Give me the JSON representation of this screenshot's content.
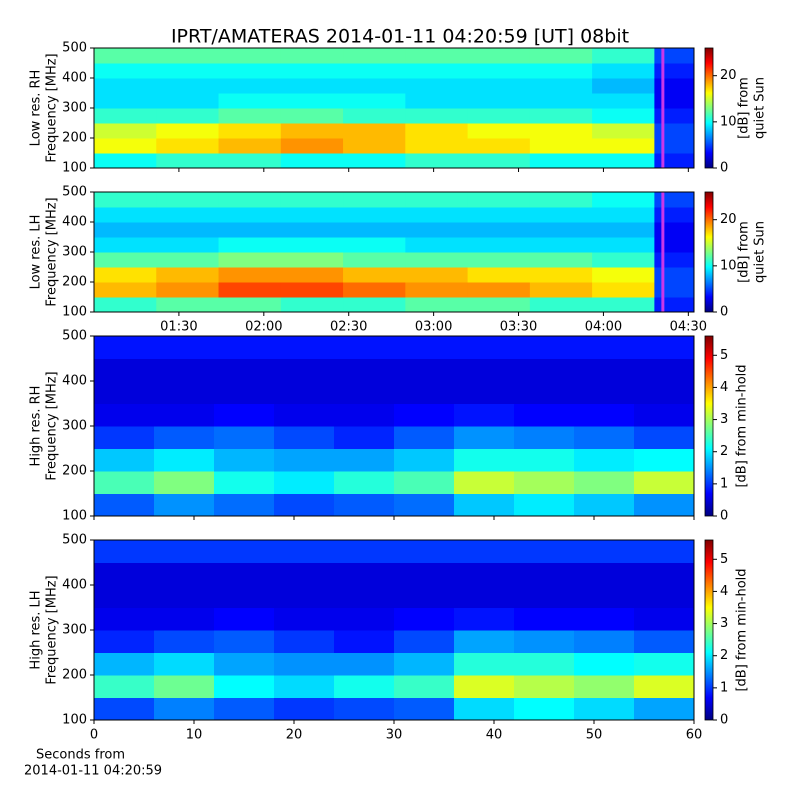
{
  "title": "IPRT/AMATERAS 2014-01-11 04:20:59 [UT]   08bit",
  "xlabel": [
    "Seconds from",
    "2014-01-11 04:20:59"
  ],
  "chart_data": [
    {
      "type": "heatmap",
      "colormap": "jet",
      "ylabel": [
        "Low res. RH",
        "Frequency [MHz]"
      ],
      "xlim": [
        60,
        272
      ],
      "ylim": [
        100,
        500
      ],
      "yticks": [
        100,
        200,
        300,
        400,
        500
      ],
      "x_edges": [
        60,
        82,
        104,
        126,
        148,
        170,
        192,
        214,
        236,
        258,
        272
      ],
      "y_edges": [
        100,
        150,
        200,
        250,
        300,
        350,
        400,
        450,
        500
      ],
      "z": [
        [
          10,
          11,
          11,
          10,
          10,
          11,
          11,
          10,
          10,
          4
        ],
        [
          16,
          17,
          18,
          19,
          18,
          17,
          17,
          16,
          16,
          5
        ],
        [
          15,
          16,
          17,
          18,
          18,
          17,
          16,
          16,
          15,
          5
        ],
        [
          11,
          11,
          12,
          12,
          11,
          11,
          11,
          11,
          10,
          4
        ],
        [
          9,
          9,
          10,
          10,
          10,
          9,
          9,
          9,
          9,
          3
        ],
        [
          9,
          9,
          9,
          9,
          9,
          9,
          9,
          9,
          8,
          3
        ],
        [
          10,
          10,
          10,
          10,
          10,
          10,
          10,
          10,
          9,
          4
        ],
        [
          12,
          12,
          12,
          12,
          12,
          12,
          12,
          12,
          11,
          5
        ]
      ],
      "marker_x": 261,
      "marker_color": "#c837e8",
      "clim": [
        0,
        26
      ],
      "cticks": [
        0,
        10,
        20
      ],
      "colorbar_label": [
        "[dB] from",
        "quiet Sun"
      ]
    },
    {
      "type": "heatmap",
      "colormap": "jet",
      "ylabel": [
        "Low res. LH",
        "Frequency [MHz]"
      ],
      "xlim": [
        60,
        272
      ],
      "ylim": [
        100,
        500
      ],
      "yticks": [
        100,
        200,
        300,
        400,
        500
      ],
      "xticks": [
        {
          "value": 90,
          "label": "01:30"
        },
        {
          "value": 120,
          "label": "02:00"
        },
        {
          "value": 150,
          "label": "02:30"
        },
        {
          "value": 180,
          "label": "03:00"
        },
        {
          "value": 210,
          "label": "03:30"
        },
        {
          "value": 240,
          "label": "04:00"
        },
        {
          "value": 270,
          "label": "04:30"
        }
      ],
      "x_edges": [
        60,
        82,
        104,
        126,
        148,
        170,
        192,
        214,
        236,
        258,
        272
      ],
      "y_edges": [
        100,
        150,
        200,
        250,
        300,
        350,
        400,
        450,
        500
      ],
      "z": [
        [
          11,
          12,
          12,
          11,
          11,
          12,
          12,
          11,
          11,
          4
        ],
        [
          18,
          19,
          21,
          21,
          20,
          19,
          19,
          18,
          17,
          5
        ],
        [
          17,
          18,
          19,
          19,
          18,
          18,
          17,
          17,
          16,
          5
        ],
        [
          12,
          12,
          13,
          13,
          12,
          12,
          12,
          12,
          11,
          4
        ],
        [
          9,
          9,
          10,
          10,
          10,
          9,
          9,
          9,
          9,
          3
        ],
        [
          8,
          8,
          8,
          8,
          8,
          8,
          8,
          8,
          8,
          3
        ],
        [
          9,
          9,
          9,
          9,
          9,
          9,
          9,
          9,
          9,
          4
        ],
        [
          11,
          11,
          11,
          11,
          11,
          11,
          11,
          11,
          10,
          5
        ]
      ],
      "marker_x": 261,
      "marker_color": "#c837e8",
      "clim": [
        0,
        26
      ],
      "cticks": [
        0,
        10,
        20
      ],
      "colorbar_label": [
        "[dB] from",
        "quiet Sun"
      ]
    },
    {
      "type": "heatmap",
      "colormap": "jet",
      "ylabel": [
        "High res. RH",
        "Frequency [MHz]"
      ],
      "xlim": [
        0,
        60
      ],
      "ylim": [
        100,
        500
      ],
      "yticks": [
        100,
        200,
        300,
        400,
        500
      ],
      "x_edges": [
        0,
        6,
        12,
        18,
        24,
        30,
        36,
        42,
        48,
        54,
        60
      ],
      "y_edges": [
        100,
        150,
        200,
        250,
        300,
        350,
        400,
        450,
        500
      ],
      "z": [
        [
          1.2,
          1.5,
          1.3,
          1.1,
          1.2,
          1.3,
          1.8,
          2.0,
          1.8,
          1.5
        ],
        [
          2.5,
          2.8,
          2.2,
          2.0,
          2.3,
          2.5,
          3.2,
          3.0,
          2.8,
          3.2
        ],
        [
          1.8,
          2.0,
          1.7,
          1.6,
          1.6,
          1.8,
          2.2,
          2.2,
          2.0,
          2.1
        ],
        [
          1.0,
          1.2,
          1.3,
          1.1,
          0.9,
          1.2,
          1.5,
          1.4,
          1.3,
          1.1
        ],
        [
          0.6,
          0.6,
          0.7,
          0.6,
          0.6,
          0.7,
          0.8,
          0.7,
          0.7,
          0.6
        ],
        [
          0.5,
          0.5,
          0.5,
          0.5,
          0.5,
          0.5,
          0.5,
          0.5,
          0.5,
          0.5
        ],
        [
          0.5,
          0.5,
          0.5,
          0.5,
          0.5,
          0.5,
          0.5,
          0.5,
          0.5,
          0.5
        ],
        [
          0.8,
          0.8,
          0.8,
          0.8,
          0.8,
          0.8,
          0.8,
          0.8,
          0.8,
          0.8
        ]
      ],
      "clim": [
        0,
        5.6
      ],
      "cticks": [
        0,
        1,
        2,
        3,
        4,
        5
      ],
      "colorbar_label": [
        "[dB] from min-hold"
      ]
    },
    {
      "type": "heatmap",
      "colormap": "jet",
      "ylabel": [
        "High res. LH",
        "Frequency [MHz]"
      ],
      "xlim": [
        0,
        60
      ],
      "ylim": [
        100,
        500
      ],
      "yticks": [
        100,
        200,
        300,
        400,
        500
      ],
      "xticks": [
        0,
        10,
        20,
        30,
        40,
        50,
        60
      ],
      "x_edges": [
        0,
        6,
        12,
        18,
        24,
        30,
        36,
        42,
        48,
        54,
        60
      ],
      "y_edges": [
        100,
        150,
        200,
        250,
        300,
        350,
        400,
        450,
        500
      ],
      "z": [
        [
          1.1,
          1.4,
          1.2,
          1.0,
          1.1,
          1.2,
          1.9,
          2.1,
          1.9,
          1.6
        ],
        [
          2.4,
          2.7,
          2.1,
          1.9,
          2.2,
          2.4,
          3.3,
          3.1,
          2.9,
          3.3
        ],
        [
          1.7,
          1.9,
          1.6,
          1.5,
          1.5,
          1.7,
          2.3,
          2.3,
          2.1,
          2.2
        ],
        [
          0.9,
          1.1,
          1.2,
          1.0,
          0.8,
          1.1,
          1.6,
          1.5,
          1.4,
          1.2
        ],
        [
          0.6,
          0.6,
          0.7,
          0.6,
          0.6,
          0.7,
          0.8,
          0.7,
          0.7,
          0.6
        ],
        [
          0.5,
          0.5,
          0.5,
          0.5,
          0.5,
          0.5,
          0.5,
          0.5,
          0.5,
          0.5
        ],
        [
          0.5,
          0.5,
          0.5,
          0.5,
          0.5,
          0.5,
          0.5,
          0.5,
          0.5,
          0.5
        ],
        [
          1.0,
          1.0,
          1.0,
          1.0,
          1.0,
          1.0,
          1.0,
          1.0,
          1.0,
          1.0
        ]
      ],
      "clim": [
        0,
        5.6
      ],
      "cticks": [
        0,
        1,
        2,
        3,
        4,
        5
      ],
      "colorbar_label": [
        "[dB] from min-hold"
      ]
    }
  ]
}
